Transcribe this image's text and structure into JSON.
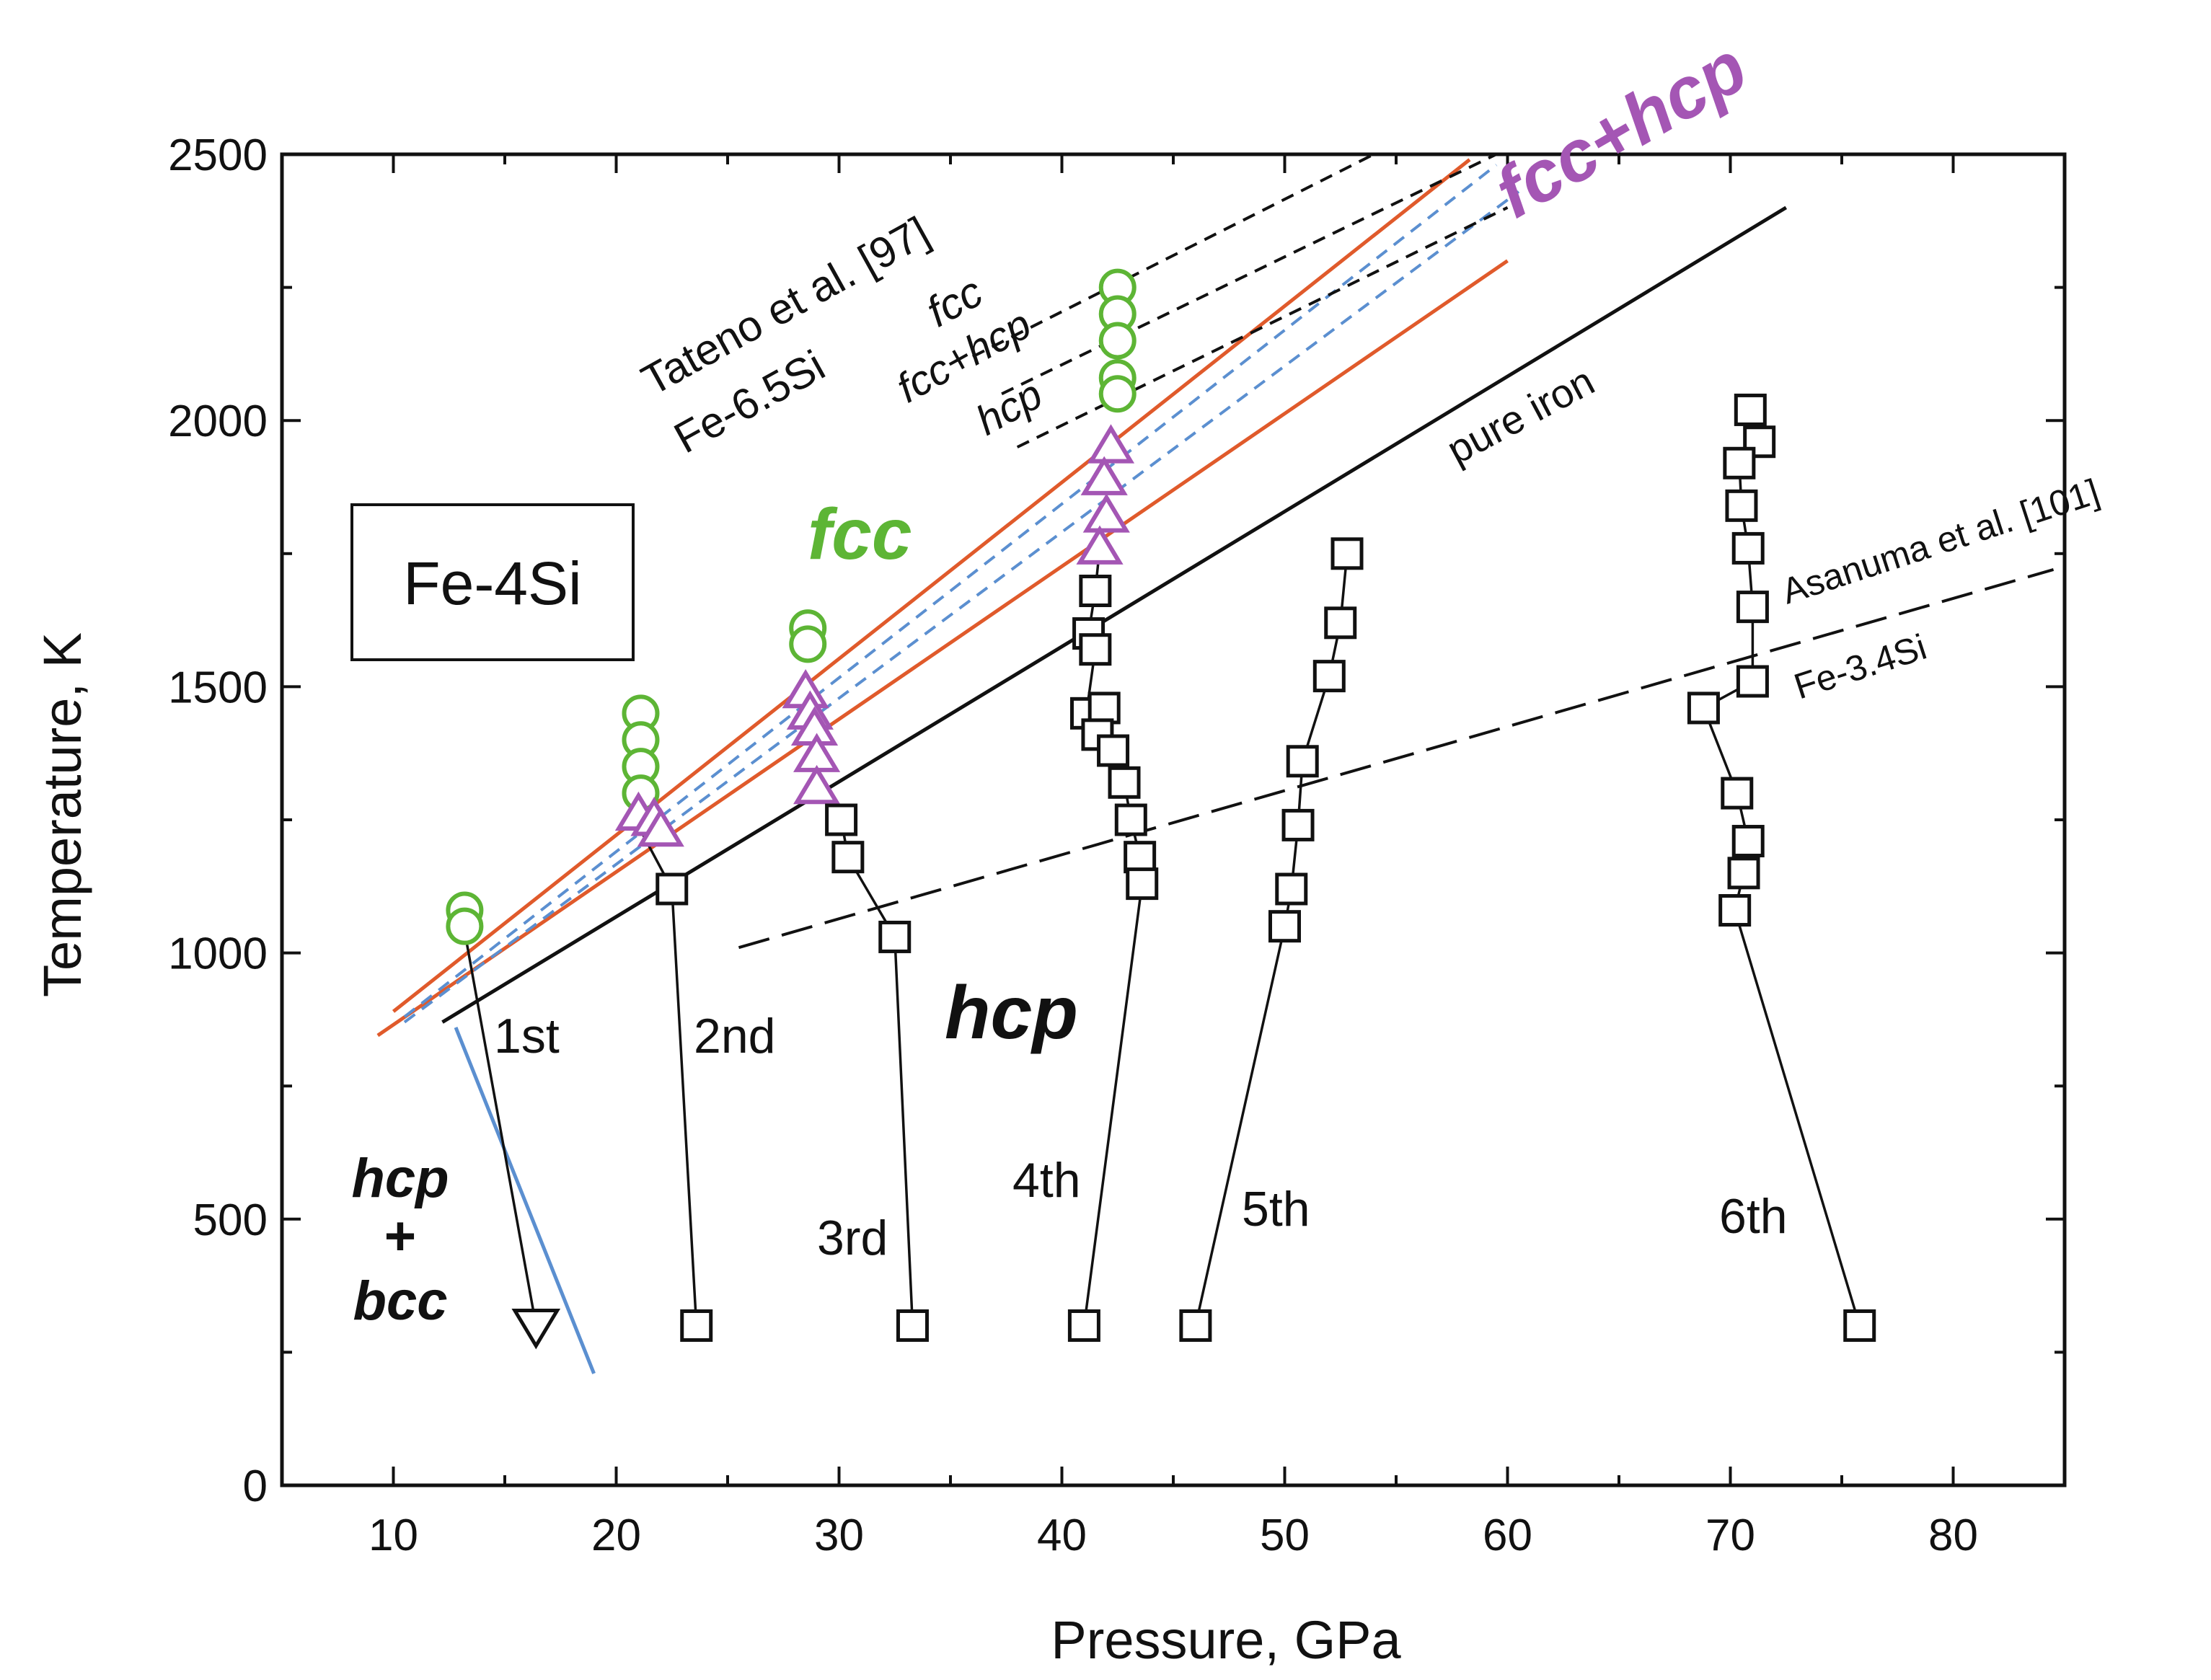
{
  "chart_data": {
    "type": "scatter",
    "title": "",
    "xlabel": "Pressure, GPa",
    "ylabel": "Temperature, K",
    "xlim": [
      5,
      85
    ],
    "ylim": [
      0,
      2500
    ],
    "xticks": [
      10,
      20,
      30,
      40,
      50,
      60,
      70,
      80
    ],
    "yticks": [
      0,
      500,
      1000,
      1500,
      2000,
      2500
    ],
    "xtick_labels": [
      "10",
      "20",
      "30",
      "40",
      "50",
      "60",
      "70",
      "80"
    ],
    "ytick_labels": [
      "0",
      "500",
      "1000",
      "1500",
      "2000",
      "2500"
    ],
    "grid": false,
    "sample_label": "Fe-4Si",
    "colors": {
      "axis": "#111111",
      "fcc_marker": "#5db535",
      "fcc_plus_hcp_marker": "#a456b4",
      "hcp_marker": "#111111",
      "boundary_orange": "#e05a2b",
      "boundary_blue_dashed": "#5b8fd0",
      "bcc_boundary": "#5b8fd0",
      "fcc_label": "#5db535",
      "fcc_hcp_label": "#a456b4"
    },
    "series": [
      {
        "name": "fcc (circles)",
        "marker": "circle",
        "color": "#5db535",
        "points": [
          [
            13.2,
            1080
          ],
          [
            13.2,
            1050
          ],
          [
            21.1,
            1450
          ],
          [
            21.1,
            1400
          ],
          [
            21.1,
            1350
          ],
          [
            21.1,
            1300
          ],
          [
            28.6,
            1610
          ],
          [
            28.6,
            1580
          ],
          [
            42.5,
            2250
          ],
          [
            42.5,
            2200
          ],
          [
            42.5,
            2150
          ],
          [
            42.5,
            2080
          ],
          [
            42.5,
            2050
          ]
        ]
      },
      {
        "name": "fcc+hcp (triangles)",
        "marker": "triangle-up",
        "color": "#a456b4",
        "points": [
          [
            21.0,
            1260
          ],
          [
            21.7,
            1250
          ],
          [
            22.0,
            1230
          ],
          [
            28.5,
            1490
          ],
          [
            28.7,
            1450
          ],
          [
            28.9,
            1420
          ],
          [
            29.0,
            1370
          ],
          [
            29.0,
            1310
          ],
          [
            42.2,
            1950
          ],
          [
            41.9,
            1890
          ],
          [
            42.0,
            1820
          ],
          [
            41.7,
            1760
          ]
        ]
      },
      {
        "name": "hcp (squares)",
        "marker": "square",
        "color": "#111111",
        "points": [
          [
            22.5,
            1120
          ],
          [
            30.1,
            1250
          ],
          [
            30.4,
            1180
          ],
          [
            32.5,
            1030
          ],
          [
            41.5,
            1680
          ],
          [
            41.2,
            1600
          ],
          [
            41.5,
            1570
          ],
          [
            41.1,
            1450
          ],
          [
            41.9,
            1460
          ],
          [
            41.6,
            1410
          ],
          [
            42.3,
            1380
          ],
          [
            42.8,
            1320
          ],
          [
            43.1,
            1250
          ],
          [
            43.5,
            1180
          ],
          [
            43.6,
            1130
          ],
          [
            52.8,
            1750
          ],
          [
            52.5,
            1620
          ],
          [
            52.0,
            1520
          ],
          [
            50.8,
            1360
          ],
          [
            50.6,
            1240
          ],
          [
            50.3,
            1120
          ],
          [
            50.0,
            1050
          ],
          [
            70.9,
            2020
          ],
          [
            71.3,
            1960
          ],
          [
            70.4,
            1920
          ],
          [
            70.5,
            1840
          ],
          [
            70.8,
            1760
          ],
          [
            71.0,
            1650
          ],
          [
            71.0,
            1510
          ],
          [
            68.8,
            1460
          ],
          [
            70.3,
            1300
          ],
          [
            70.8,
            1210
          ],
          [
            70.6,
            1150
          ],
          [
            70.2,
            1080
          ]
        ]
      },
      {
        "name": "starting points (squares)",
        "marker": "square",
        "color": "#111111",
        "points": [
          [
            23.6,
            300
          ],
          [
            33.3,
            300
          ],
          [
            41.0,
            300
          ],
          [
            46.0,
            300
          ],
          [
            75.8,
            300
          ]
        ]
      },
      {
        "name": "1st run start (down triangle)",
        "marker": "triangle-down",
        "color": "#111111",
        "points": [
          [
            16.4,
            300
          ]
        ]
      }
    ],
    "compression_paths": [
      {
        "label": "1st",
        "points": [
          [
            16.4,
            300
          ],
          [
            13.2,
            1040
          ]
        ]
      },
      {
        "label": "2nd",
        "points": [
          [
            23.6,
            300
          ],
          [
            22.5,
            1120
          ],
          [
            21.1,
            1230
          ]
        ]
      },
      {
        "label": "3rd",
        "points": [
          [
            33.3,
            300
          ],
          [
            32.5,
            1030
          ],
          [
            30.4,
            1180
          ],
          [
            30.1,
            1250
          ],
          [
            29.0,
            1310
          ]
        ]
      },
      {
        "label": "4th",
        "points": [
          [
            41.0,
            300
          ],
          [
            43.6,
            1130
          ],
          [
            43.5,
            1180
          ],
          [
            43.1,
            1250
          ],
          [
            42.8,
            1320
          ],
          [
            42.3,
            1380
          ],
          [
            41.6,
            1410
          ],
          [
            41.9,
            1460
          ],
          [
            41.1,
            1450
          ],
          [
            41.5,
            1570
          ],
          [
            41.2,
            1600
          ],
          [
            41.5,
            1680
          ],
          [
            41.7,
            1760
          ]
        ]
      },
      {
        "label": "5th",
        "points": [
          [
            46.0,
            300
          ],
          [
            50.0,
            1050
          ],
          [
            50.3,
            1120
          ],
          [
            50.6,
            1240
          ],
          [
            50.8,
            1360
          ],
          [
            52.0,
            1520
          ],
          [
            52.5,
            1620
          ],
          [
            52.8,
            1750
          ]
        ]
      },
      {
        "label": "6th",
        "points": [
          [
            75.8,
            300
          ],
          [
            70.2,
            1080
          ],
          [
            70.6,
            1150
          ],
          [
            70.8,
            1210
          ],
          [
            70.3,
            1300
          ],
          [
            68.8,
            1460
          ],
          [
            71.0,
            1510
          ],
          [
            71.0,
            1650
          ],
          [
            70.8,
            1760
          ],
          [
            70.5,
            1840
          ],
          [
            70.4,
            1920
          ],
          [
            71.3,
            1960
          ],
          [
            70.9,
            2020
          ]
        ]
      }
    ],
    "boundary_lines": [
      {
        "name": "fcc / fcc+hcp upper (orange)",
        "style": "solid",
        "color": "#e05a2b",
        "points": [
          [
            10.0,
            890
          ],
          [
            58.3,
            2490
          ]
        ]
      },
      {
        "name": "fcc+hcp / hcp lower (orange)",
        "style": "solid",
        "color": "#e05a2b",
        "points": [
          [
            9.3,
            845
          ],
          [
            60.0,
            2300
          ]
        ]
      },
      {
        "name": "blue dashed upper",
        "style": "dashed",
        "color": "#5b8fd0",
        "points": [
          [
            10.5,
            880
          ],
          [
            59.5,
            2480
          ]
        ]
      },
      {
        "name": "blue dashed lower",
        "style": "dashed",
        "color": "#5b8fd0",
        "points": [
          [
            10.5,
            870
          ],
          [
            60.5,
            2430
          ]
        ]
      },
      {
        "name": "pure iron",
        "style": "solid",
        "color": "#111111",
        "points": [
          [
            12.2,
            870
          ],
          [
            72.5,
            2400
          ]
        ]
      },
      {
        "name": "Tateno Fe-6.5Si fcc",
        "style": "dashed",
        "color": "#111111",
        "points": [
          [
            36.0,
            2120
          ],
          [
            54.0,
            2500
          ]
        ]
      },
      {
        "name": "Tateno Fe-6.5Si fcc+hcp",
        "style": "dashed",
        "color": "#111111",
        "points": [
          [
            37.3,
            2050
          ],
          [
            59.5,
            2500
          ]
        ]
      },
      {
        "name": "Tateno Fe-6.5Si hcp",
        "style": "dashed",
        "color": "#111111",
        "points": [
          [
            38.0,
            1950
          ],
          [
            60.0,
            2400
          ]
        ]
      },
      {
        "name": "Asanuma Fe-3.4Si",
        "style": "long-dashed",
        "color": "#111111",
        "points": [
          [
            25.5,
            1010
          ],
          [
            84.5,
            1720
          ]
        ]
      },
      {
        "name": "hcp+bcc boundary",
        "style": "solid",
        "color": "#5b8fd0",
        "points": [
          [
            12.8,
            860
          ],
          [
            19.0,
            210
          ]
        ]
      }
    ],
    "annotations": {
      "fcc": "fcc",
      "fcc_hcp": "fcc+hcp",
      "hcp": "hcp",
      "hcp_bcc_1": "hcp",
      "hcp_bcc_2": "+",
      "hcp_bcc_3": "bcc",
      "tateno_ref": "Tateno et al. [97]",
      "tateno_sample": "Fe-6.5Si",
      "tateno_fcc": "fcc",
      "tateno_fcc_hcp": "fcc+hcp",
      "tateno_hcp": "hcp",
      "pure_iron": "pure iron",
      "asanuma_ref": "Asanuma et al. [101]",
      "asanuma_sample": "Fe-3.4Si",
      "run_labels": [
        "1st",
        "2nd",
        "3rd",
        "4th",
        "5th",
        "6th"
      ]
    }
  }
}
